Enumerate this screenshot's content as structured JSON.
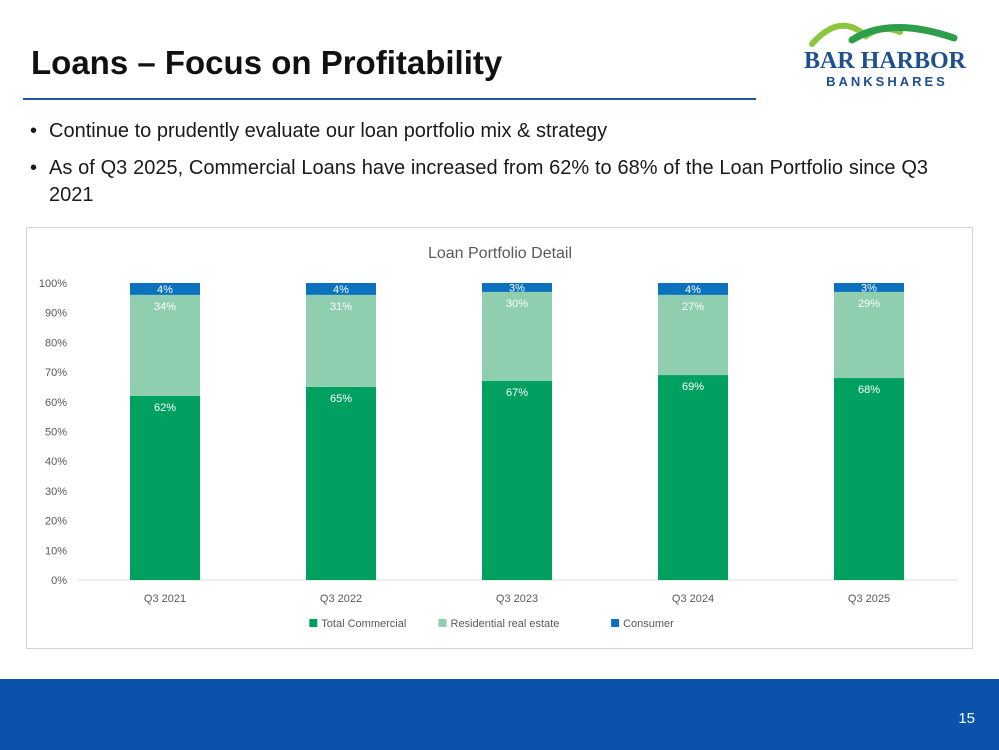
{
  "slide": {
    "title": "Loans – Focus on Profitability",
    "bullets": [
      "Continue to prudently evaluate our loan portfolio mix & strategy",
      "As of Q3 2025, Commercial Loans have increased from 62% to 68% of the Loan Portfolio since Q3 2021"
    ],
    "page_number": "15"
  },
  "logo": {
    "line1": "BAR HARBOR",
    "line2": "BANKSHARES",
    "colors": {
      "text": "#1e4f8f",
      "green": "#2e9e4a",
      "lightgreen": "#8cc63f"
    }
  },
  "colors": {
    "accent": "#2456a6",
    "footer": "#0b52ad"
  },
  "chart_data": {
    "type": "bar",
    "stacked": true,
    "title": "Loan Portfolio Detail",
    "categories": [
      "Q3 2021",
      "Q3 2022",
      "Q3 2023",
      "Q3 2024",
      "Q3 2025"
    ],
    "series": [
      {
        "name": "Total Commercial",
        "color": "#00a160",
        "values": [
          62,
          65,
          67,
          69,
          68
        ],
        "labels": [
          "62%",
          "65%",
          "67%",
          "69%",
          "68%"
        ]
      },
      {
        "name": "Residential real estate",
        "color": "#8fceaf",
        "values": [
          34,
          31,
          30,
          27,
          29
        ],
        "labels": [
          "34%",
          "31%",
          "30%",
          "27%",
          "29%"
        ]
      },
      {
        "name": "Consumer",
        "color": "#0a71bc",
        "values": [
          4,
          4,
          3,
          4,
          3
        ],
        "labels": [
          "4%",
          "4%",
          "3%",
          "4%",
          "3%"
        ]
      }
    ],
    "ylim": [
      0,
      100
    ],
    "yticks": [
      "0%",
      "10%",
      "20%",
      "30%",
      "40%",
      "50%",
      "60%",
      "70%",
      "80%",
      "90%",
      "100%"
    ],
    "xlabel": "",
    "ylabel": "",
    "legend_position": "bottom",
    "grid": false
  }
}
